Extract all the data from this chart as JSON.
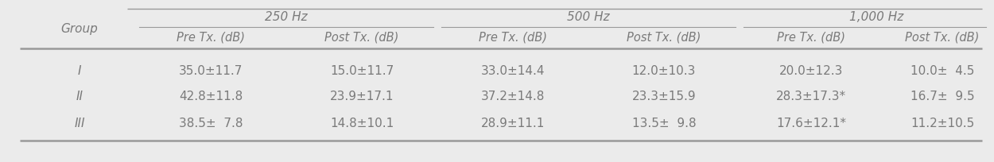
{
  "background_color": "#ebebeb",
  "header1": [
    "250 Hz",
    "500 Hz",
    "1,000 Hz"
  ],
  "header2": [
    "Pre Tx. (dB)",
    "Post Tx. (dB)",
    "Pre Tx. (dB)",
    "Post Tx. (dB)",
    "Pre Tx. (dB)",
    "Post Tx. (dB)"
  ],
  "col_group": "Group",
  "rows": [
    [
      "I",
      "35.0±11.7",
      "15.0±11.7",
      "33.0±14.4",
      "12.0±10.3",
      "20.0±12.3",
      "10.0±  4.5"
    ],
    [
      "II",
      "42.8±11.8",
      "23.9±17.1",
      "37.2±14.8",
      "23.3±15.9",
      "28.3±17.3*",
      "16.7±  9.5"
    ],
    [
      "III",
      "38.5±  7.8",
      "14.8±10.1",
      "28.9±11.1",
      "13.5±  9.8",
      "17.6±12.1*",
      "11.2±10.5"
    ]
  ],
  "text_color": "#7a7a7a",
  "line_color": "#999999",
  "font_size": 11,
  "header_font_size": 11
}
